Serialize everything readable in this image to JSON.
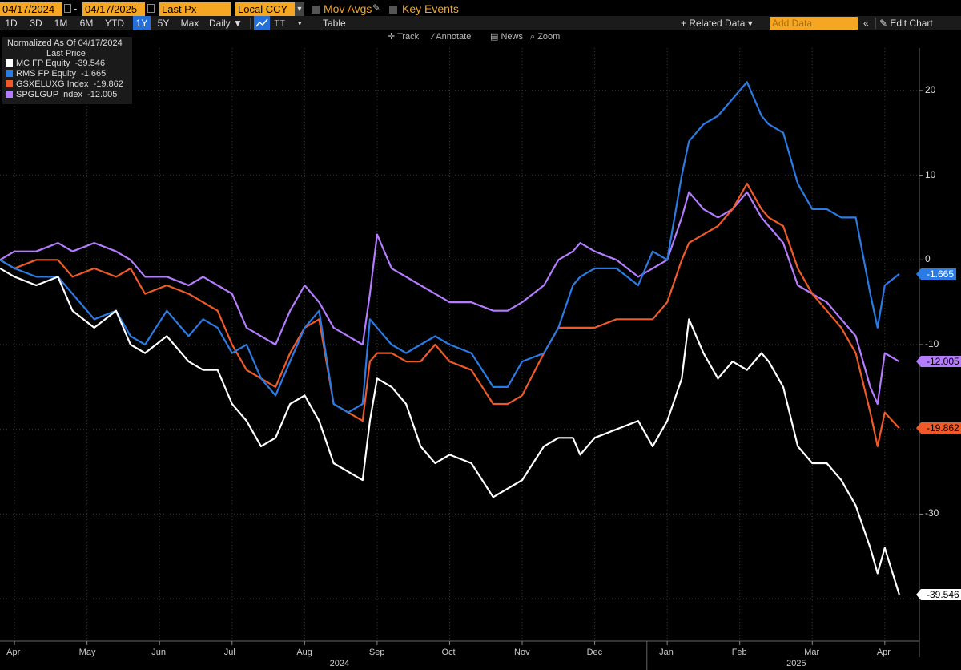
{
  "toolbar": {
    "start_date": "04/17/2024",
    "dash": "-",
    "end_date": "04/17/2025",
    "field": "Last Px",
    "currency": "Local CCY",
    "mov_avgs": "Mov Avgs",
    "key_events": "Key Events"
  },
  "periods": [
    "1D",
    "3D",
    "1M",
    "6M",
    "YTD",
    "1Y",
    "5Y",
    "Max"
  ],
  "active_period": "1Y",
  "frequency": "Daily ▼",
  "table_label": "Table",
  "related_data": "+ Related Data ▾",
  "add_data_placeholder": "Add Data",
  "edit_chart": "✎ Edit Chart",
  "tools": [
    "✛ Track",
    "⁄ Annotate",
    "▤ News",
    "⌕ Zoom"
  ],
  "legend": {
    "title": "Normalized As Of 04/17/2024",
    "subtitle": "Last Price"
  },
  "colors": {
    "mc": "#ffffff",
    "rms": "#2a7be4",
    "gsx": "#f05a28",
    "spg": "#b57cff",
    "bg": "#000000",
    "accent": "#f5a623"
  },
  "chart_data": {
    "type": "line",
    "title": "",
    "xlabel": "",
    "ylabel": "",
    "ylim": [
      -45,
      25
    ],
    "y_ticks": [
      20,
      10,
      0,
      -10,
      -30
    ],
    "x_month_labels": [
      "Apr",
      "May",
      "Jun",
      "Jul",
      "Aug",
      "Sep",
      "Oct",
      "Nov",
      "Dec",
      "Jan",
      "Feb",
      "Mar",
      "Apr"
    ],
    "x_year_labels": [
      "2024",
      "2025"
    ],
    "x_month_index": [
      0.2,
      1.2,
      2.2,
      3.2,
      4.2,
      5.2,
      6.2,
      7.2,
      8.2,
      9.2,
      10.2,
      11.2,
      12.2
    ],
    "x_range": [
      0,
      12.5
    ],
    "series": [
      {
        "key": "mc",
        "name": "MC FP Equity",
        "last": "-39.546",
        "x": [
          0,
          0.2,
          0.5,
          0.8,
          1.0,
          1.3,
          1.6,
          1.8,
          2.0,
          2.3,
          2.6,
          2.8,
          3.0,
          3.2,
          3.4,
          3.6,
          3.8,
          4.0,
          4.2,
          4.4,
          4.6,
          4.8,
          5.0,
          5.1,
          5.2,
          5.4,
          5.6,
          5.8,
          6.0,
          6.2,
          6.5,
          6.8,
          7.0,
          7.2,
          7.5,
          7.7,
          7.9,
          8.0,
          8.2,
          8.5,
          8.8,
          9.0,
          9.2,
          9.4,
          9.5,
          9.7,
          9.9,
          10.1,
          10.3,
          10.5,
          10.6,
          10.8,
          11.0,
          11.2,
          11.4,
          11.6,
          11.8,
          12.0,
          12.1,
          12.2,
          12.4
        ],
        "y": [
          -1,
          -2,
          -3,
          -2,
          -6,
          -8,
          -6,
          -10,
          -11,
          -9,
          -12,
          -13,
          -13,
          -17,
          -19,
          -22,
          -21,
          -17,
          -16,
          -19,
          -24,
          -25,
          -26,
          -19,
          -14,
          -15,
          -17,
          -22,
          -24,
          -23,
          -24,
          -28,
          -27,
          -26,
          -22,
          -21,
          -21,
          -23,
          -21,
          -20,
          -19,
          -22,
          -19,
          -14,
          -7,
          -11,
          -14,
          -12,
          -13,
          -11,
          -12,
          -15,
          -22,
          -24,
          -24,
          -26,
          -29,
          -34,
          -37,
          -34,
          -39.5
        ]
      },
      {
        "key": "rms",
        "name": "RMS FP Equity",
        "last": "-1.665",
        "x": [
          0,
          0.2,
          0.5,
          0.8,
          1.0,
          1.3,
          1.6,
          1.8,
          2.0,
          2.3,
          2.6,
          2.8,
          3.0,
          3.2,
          3.4,
          3.6,
          3.8,
          4.0,
          4.2,
          4.4,
          4.6,
          4.8,
          5.0,
          5.1,
          5.2,
          5.4,
          5.6,
          5.8,
          6.0,
          6.2,
          6.5,
          6.8,
          7.0,
          7.2,
          7.5,
          7.7,
          7.9,
          8.0,
          8.2,
          8.5,
          8.8,
          9.0,
          9.2,
          9.4,
          9.5,
          9.7,
          9.9,
          10.1,
          10.3,
          10.5,
          10.6,
          10.8,
          11.0,
          11.2,
          11.4,
          11.6,
          11.8,
          12.0,
          12.1,
          12.2,
          12.4
        ],
        "y": [
          0,
          -1,
          -2,
          -2,
          -4,
          -7,
          -6,
          -9,
          -10,
          -6,
          -9,
          -7,
          -8,
          -11,
          -10,
          -14,
          -16,
          -12,
          -8,
          -6,
          -17,
          -18,
          -17,
          -7,
          -8,
          -10,
          -11,
          -10,
          -9,
          -10,
          -11,
          -15,
          -15,
          -12,
          -11,
          -8,
          -3,
          -2,
          -1,
          -1,
          -3,
          1,
          0,
          10,
          14,
          16,
          17,
          19,
          21,
          17,
          16,
          15,
          9,
          6,
          6,
          5,
          5,
          -4,
          -8,
          -3,
          -1.665
        ]
      },
      {
        "key": "gsx",
        "name": "GSXELUXG Index",
        "last": "-19.862",
        "x": [
          0,
          0.2,
          0.5,
          0.8,
          1.0,
          1.3,
          1.6,
          1.8,
          2.0,
          2.3,
          2.6,
          2.8,
          3.0,
          3.2,
          3.4,
          3.6,
          3.8,
          4.0,
          4.2,
          4.4,
          4.6,
          4.8,
          5.0,
          5.1,
          5.2,
          5.4,
          5.6,
          5.8,
          6.0,
          6.2,
          6.5,
          6.8,
          7.0,
          7.2,
          7.5,
          7.7,
          7.9,
          8.0,
          8.2,
          8.5,
          8.8,
          9.0,
          9.2,
          9.4,
          9.5,
          9.7,
          9.9,
          10.1,
          10.3,
          10.5,
          10.6,
          10.8,
          11.0,
          11.2,
          11.4,
          11.6,
          11.8,
          12.0,
          12.1,
          12.2,
          12.4
        ],
        "y": [
          0,
          -1,
          0,
          0,
          -2,
          -1,
          -2,
          -1,
          -4,
          -3,
          -4,
          -5,
          -6,
          -10,
          -13,
          -14,
          -15,
          -11,
          -8,
          -7,
          -17,
          -18,
          -19,
          -12,
          -11,
          -11,
          -12,
          -12,
          -10,
          -12,
          -13,
          -17,
          -17,
          -16,
          -11,
          -8,
          -8,
          -8,
          -8,
          -7,
          -7,
          -7,
          -5,
          0,
          2,
          3,
          4,
          6,
          9,
          6,
          5,
          4,
          -1,
          -4,
          -6,
          -8,
          -11,
          -18,
          -22,
          -18,
          -19.862
        ]
      },
      {
        "key": "spg",
        "name": "SPGLGUP Index",
        "last": "-12.005",
        "x": [
          0,
          0.2,
          0.5,
          0.8,
          1.0,
          1.3,
          1.6,
          1.8,
          2.0,
          2.3,
          2.6,
          2.8,
          3.0,
          3.2,
          3.4,
          3.6,
          3.8,
          4.0,
          4.2,
          4.4,
          4.6,
          4.8,
          5.0,
          5.1,
          5.2,
          5.4,
          5.6,
          5.8,
          6.0,
          6.2,
          6.5,
          6.8,
          7.0,
          7.2,
          7.5,
          7.7,
          7.9,
          8.0,
          8.2,
          8.5,
          8.8,
          9.0,
          9.2,
          9.4,
          9.5,
          9.7,
          9.9,
          10.1,
          10.3,
          10.5,
          10.6,
          10.8,
          11.0,
          11.2,
          11.4,
          11.6,
          11.8,
          12.0,
          12.1,
          12.2,
          12.4
        ],
        "y": [
          0,
          1,
          1,
          2,
          1,
          2,
          1,
          0,
          -2,
          -2,
          -3,
          -2,
          -3,
          -4,
          -8,
          -9,
          -10,
          -6,
          -3,
          -5,
          -8,
          -9,
          -10,
          -4,
          3,
          -1,
          -2,
          -3,
          -4,
          -5,
          -5,
          -6,
          -6,
          -5,
          -3,
          0,
          1,
          2,
          1,
          0,
          -2,
          -1,
          0,
          5,
          8,
          6,
          5,
          6,
          8,
          5,
          4,
          2,
          -3,
          -4,
          -5,
          -7,
          -9,
          -15,
          -17,
          -11,
          -12.005
        ]
      }
    ]
  }
}
